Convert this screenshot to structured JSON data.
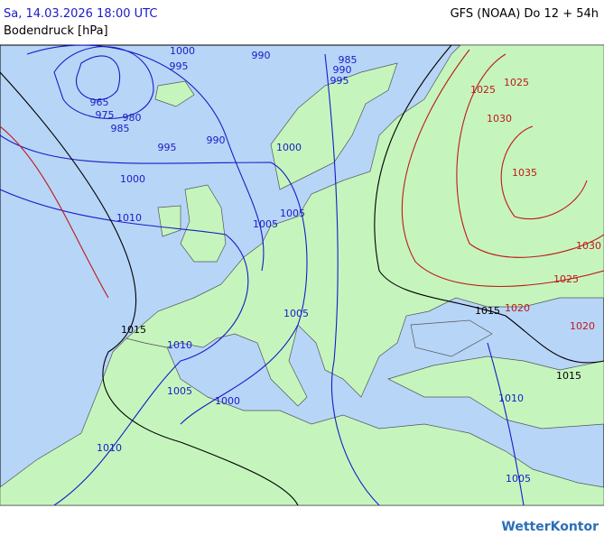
{
  "header": {
    "date": "Sa, 14.03.2026 18:00 UTC",
    "model": "GFS (NOAA) Do 12 + 54h",
    "subtitle": "Bodendruck [hPa]"
  },
  "map": {
    "isobar_labels": [
      {
        "label": "1000",
        "color": "#1a1ac8"
      },
      {
        "label": "995",
        "color": "#1a1ac8"
      },
      {
        "label": "990",
        "color": "#1a1ac8"
      },
      {
        "label": "985",
        "color": "#1a1ac8"
      },
      {
        "label": "990",
        "color": "#1a1ac8"
      },
      {
        "label": "995",
        "color": "#1a1ac8"
      },
      {
        "label": "965",
        "color": "#1a1ac8"
      },
      {
        "label": "975",
        "color": "#1a1ac8"
      },
      {
        "label": "980",
        "color": "#1a1ac8"
      },
      {
        "label": "985",
        "color": "#1a1ac8"
      },
      {
        "label": "995",
        "color": "#1a1ac8"
      },
      {
        "label": "990",
        "color": "#1a1ac8"
      },
      {
        "label": "1000",
        "color": "#1a1ac8"
      },
      {
        "label": "1000",
        "color": "#1a1ac8"
      },
      {
        "label": "1010",
        "color": "#1a1ac8"
      },
      {
        "label": "1005",
        "color": "#1a1ac8"
      },
      {
        "label": "1005",
        "color": "#1a1ac8"
      },
      {
        "label": "1025",
        "color": "#c01818"
      },
      {
        "label": "1025",
        "color": "#c01818"
      },
      {
        "label": "1030",
        "color": "#c01818"
      },
      {
        "label": "1035",
        "color": "#c01818"
      },
      {
        "label": "1030",
        "color": "#c01818"
      },
      {
        "label": "1025",
        "color": "#c01818"
      },
      {
        "label": "1020",
        "color": "#c01818"
      },
      {
        "label": "1015",
        "color": "#000000"
      },
      {
        "label": "1020",
        "color": "#c01818"
      },
      {
        "label": "1015",
        "color": "#000000"
      },
      {
        "label": "1010",
        "color": "#1a1ac8"
      },
      {
        "label": "1005",
        "color": "#1a1ac8"
      },
      {
        "label": "1005",
        "color": "#1a1ac8"
      },
      {
        "label": "1000",
        "color": "#1a1ac8"
      },
      {
        "label": "1010",
        "color": "#1a1ac8"
      },
      {
        "label": "1015",
        "color": "#000000"
      },
      {
        "label": "1010",
        "color": "#1a1ac8"
      },
      {
        "label": "1005",
        "color": "#1a1ac8"
      }
    ]
  },
  "footer": {
    "logo": "WetterKontor"
  }
}
